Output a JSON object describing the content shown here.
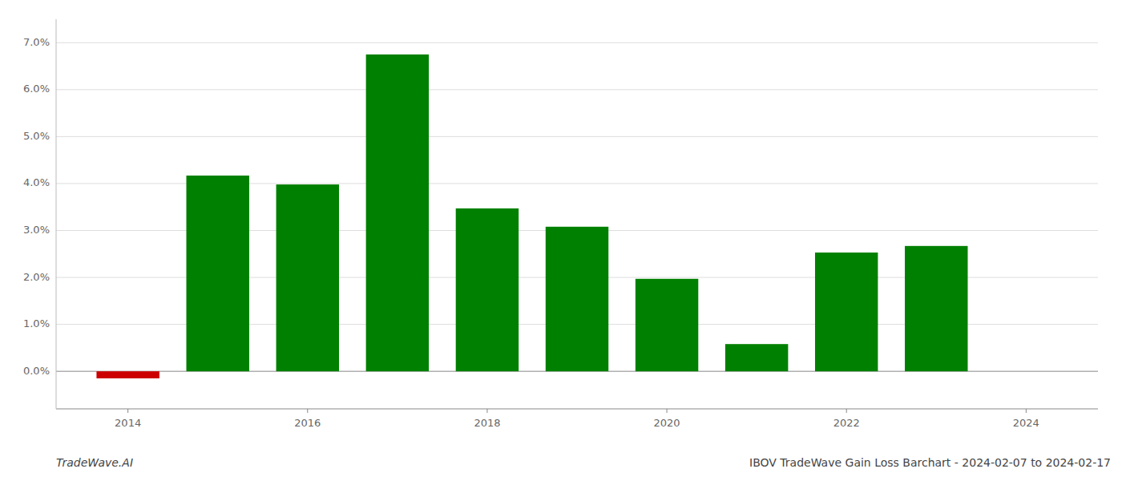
{
  "chart_data": {
    "type": "bar",
    "title": "IBOV TradeWave Gain Loss Barchart - 2024-02-07 to 2024-02-17",
    "annotations": [
      "TradeWave.AI"
    ],
    "x": [
      2014,
      2015,
      2016,
      2017,
      2018,
      2019,
      2020,
      2021,
      2022,
      2023
    ],
    "values": [
      -0.0015,
      0.0417,
      0.0398,
      0.0675,
      0.0347,
      0.0308,
      0.0197,
      0.0058,
      0.0253,
      0.0267
    ],
    "colors": [
      "#cc0000",
      "#008000",
      "#008000",
      "#008000",
      "#008000",
      "#008000",
      "#008000",
      "#008000",
      "#008000",
      "#008000"
    ],
    "xlim": [
      2013.2,
      2024.8
    ],
    "xticks": [
      2014,
      2016,
      2018,
      2020,
      2022,
      2024
    ],
    "ylim": [
      -0.008,
      0.075
    ],
    "yticks": [
      {
        "value": 0.0,
        "label": "0.0%"
      },
      {
        "value": 0.01,
        "label": "1.0%"
      },
      {
        "value": 0.02,
        "label": "2.0%"
      },
      {
        "value": 0.03,
        "label": "3.0%"
      },
      {
        "value": 0.04,
        "label": "4.0%"
      },
      {
        "value": 0.05,
        "label": "5.0%"
      },
      {
        "value": 0.06,
        "label": "6.0%"
      },
      {
        "value": 0.07,
        "label": "7.0%"
      }
    ],
    "grid": true
  }
}
